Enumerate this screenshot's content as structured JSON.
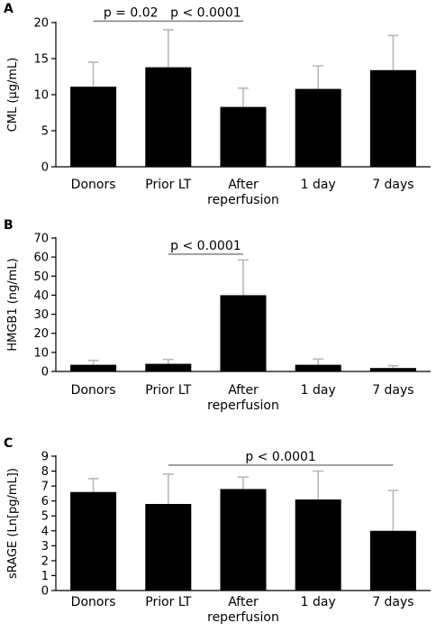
{
  "chart_data": [
    {
      "type": "bar",
      "panel": "A",
      "ylabel": "CML (µg/mL)",
      "ylim": [
        0,
        20
      ],
      "yticks": [
        0,
        5,
        10,
        15,
        20
      ],
      "categories": [
        "Donors",
        "Prior LT",
        "After reperfusion",
        "1 day",
        "7 days"
      ],
      "category_lines": [
        [
          "Donors"
        ],
        [
          "Prior LT"
        ],
        [
          "After",
          "reperfusion"
        ],
        [
          "1 day"
        ],
        [
          "7 days"
        ]
      ],
      "values": [
        11.1,
        13.8,
        8.3,
        10.8,
        13.4
      ],
      "error_upper": [
        14.5,
        19.0,
        10.9,
        14.0,
        18.2
      ],
      "annotations": [
        {
          "text": "p = 0.02",
          "from": 0,
          "to": 1,
          "y": 20.2
        },
        {
          "text": "p < 0.0001",
          "from": 1,
          "to": 2,
          "y": 20.2
        }
      ]
    },
    {
      "type": "bar",
      "panel": "B",
      "ylabel": "HMGB1 (ng/mL)",
      "ylim": [
        0,
        70
      ],
      "yticks": [
        0,
        10,
        20,
        30,
        40,
        50,
        60,
        70
      ],
      "categories": [
        "Donors",
        "Prior LT",
        "After reperfusion",
        "1 day",
        "7 days"
      ],
      "category_lines": [
        [
          "Donors"
        ],
        [
          "Prior LT"
        ],
        [
          "After",
          "reperfusion"
        ],
        [
          "1 day"
        ],
        [
          "7 days"
        ]
      ],
      "values": [
        3.5,
        4.0,
        40.0,
        3.5,
        1.8
      ],
      "error_upper": [
        5.8,
        6.3,
        58.5,
        6.5,
        3.0
      ],
      "annotations": [
        {
          "text": "p < 0.0001",
          "from": 1,
          "to": 2,
          "y": 61.5
        }
      ]
    },
    {
      "type": "bar",
      "panel": "C",
      "ylabel": "sRAGE (Ln[pg/mL])",
      "ylim": [
        0,
        9
      ],
      "yticks": [
        0,
        1,
        2,
        3,
        4,
        5,
        6,
        7,
        8,
        9
      ],
      "categories": [
        "Donors",
        "Prior LT",
        "After reperfusion",
        "1 day",
        "7 days"
      ],
      "category_lines": [
        [
          "Donors"
        ],
        [
          "Prior LT"
        ],
        [
          "After",
          "reperfusion"
        ],
        [
          "1 day"
        ],
        [
          "7 days"
        ]
      ],
      "values": [
        6.6,
        5.8,
        6.8,
        6.1,
        4.0
      ],
      "error_upper": [
        7.5,
        7.8,
        7.6,
        8.0,
        6.7
      ],
      "annotations": [
        {
          "text": "p < 0.0001",
          "from": 1,
          "to": 4,
          "y": 8.4
        }
      ]
    }
  ]
}
